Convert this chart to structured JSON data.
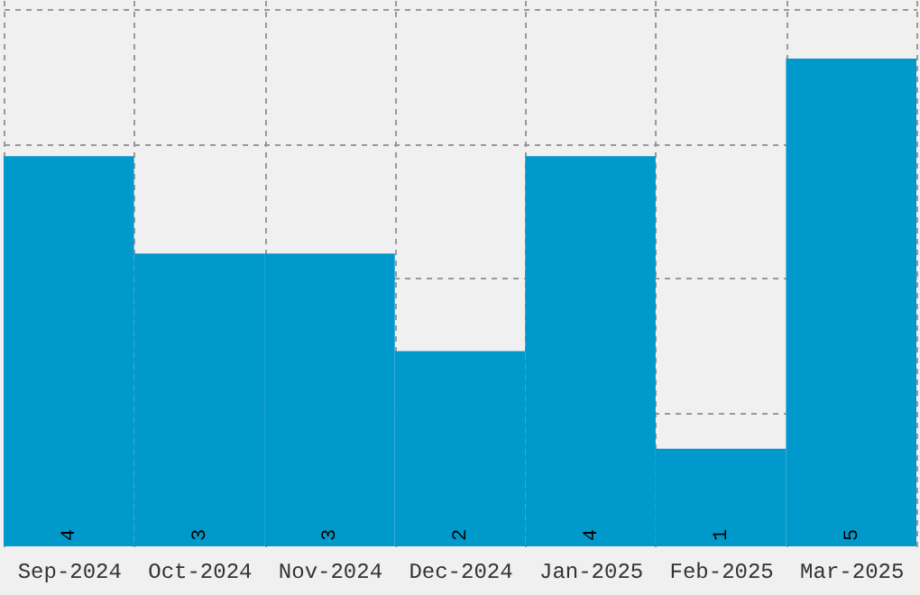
{
  "chart_data": {
    "type": "bar",
    "categories": [
      "Sep-2024",
      "Oct-2024",
      "Nov-2024",
      "Dec-2024",
      "Jan-2025",
      "Feb-2025",
      "Mar-2025"
    ],
    "values": [
      4,
      3,
      3,
      2,
      4,
      1,
      5
    ],
    "color": "#0099cc",
    "data_labels": true,
    "grid": true,
    "tick_labels": "x",
    "ylim": [
      0,
      5.6
    ],
    "yticks": [
      {
        "value": 1.375,
        "label": null
      },
      {
        "value": 2.75,
        "label": null
      },
      {
        "value": 4.125,
        "label": null
      },
      {
        "value": 5.5,
        "label": null
      }
    ]
  }
}
